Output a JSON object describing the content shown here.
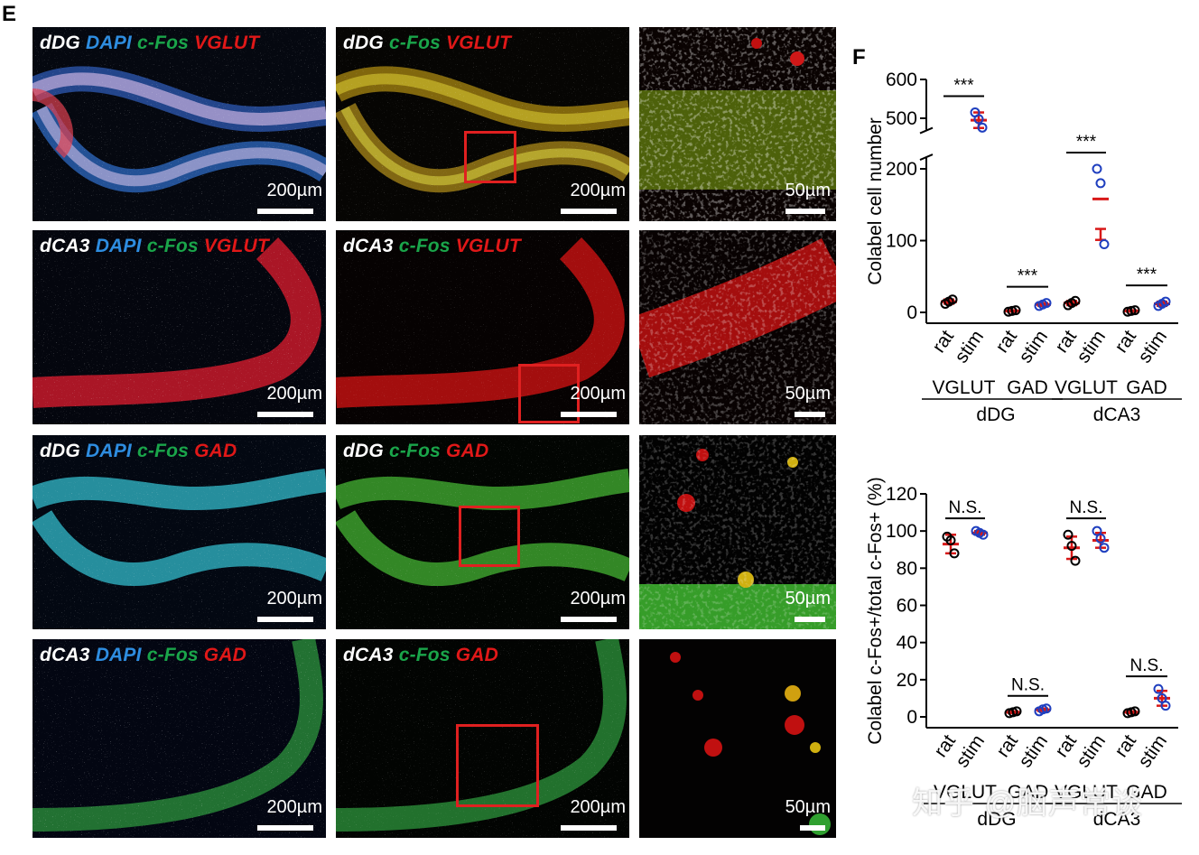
{
  "panel_e_label": "E",
  "panel_f_label": "F",
  "rows": [
    {
      "region": "dDG",
      "marker": "VGLUT",
      "scale_main": "200µm",
      "scale_zoom": "50µm"
    },
    {
      "region": "dCA3",
      "marker": "VGLUT",
      "scale_main": "200µm",
      "scale_zoom": "50µm"
    },
    {
      "region": "dDG",
      "marker": "GAD",
      "scale_main": "200µm",
      "scale_zoom": "50µm"
    },
    {
      "region": "dCA3",
      "marker": "GAD",
      "scale_main": "200µm",
      "scale_zoom": "50µm"
    }
  ],
  "channels": {
    "dapi": "DAPI",
    "cfos": "c-Fos"
  },
  "colors": {
    "dapi": "#2e8de0",
    "cfos": "#1aa54a",
    "red": "#e01818",
    "marker_red": "#d81818",
    "marker_blue": "#1f3fbf",
    "marker_black": "#000000"
  },
  "chart_data": [
    {
      "type": "scatter",
      "ylabel": "Colabel cell number",
      "yticks": [
        0,
        100,
        200,
        500,
        600
      ],
      "axis_break": [
        210,
        480
      ],
      "x_tick_labels": [
        "rat",
        "stim",
        "rat",
        "stim",
        "rat",
        "stim",
        "rat",
        "stim"
      ],
      "group_labels": [
        "VGLUT",
        "GAD",
        "VGLUT",
        "GAD"
      ],
      "region_labels": [
        "dDG",
        "dCA3"
      ],
      "significance": [
        "***",
        "***",
        "***",
        "***"
      ],
      "series": [
        {
          "name": "rat",
          "color": "black",
          "points": [
            [
              0,
              12
            ],
            [
              0,
              15
            ],
            [
              0,
              18
            ],
            [
              2,
              1
            ],
            [
              2,
              2
            ],
            [
              2,
              3
            ],
            [
              4,
              10
            ],
            [
              4,
              13
            ],
            [
              4,
              16
            ],
            [
              6,
              1
            ],
            [
              6,
              2
            ],
            [
              6,
              3
            ]
          ]
        },
        {
          "name": "stim",
          "color": "blue",
          "points": [
            [
              1,
              515
            ],
            [
              1,
              498
            ],
            [
              1,
              476
            ],
            [
              3,
              9
            ],
            [
              3,
              11
            ],
            [
              3,
              13
            ],
            [
              5,
              200
            ],
            [
              5,
              180
            ],
            [
              5,
              95
            ],
            [
              7,
              9
            ],
            [
              7,
              12
            ],
            [
              7,
              15
            ]
          ]
        }
      ],
      "mean_sd": [
        {
          "x": 0,
          "mean": 15,
          "sd": 3
        },
        {
          "x": 1,
          "mean": 495,
          "sd": 20
        },
        {
          "x": 2,
          "mean": 2,
          "sd": 1
        },
        {
          "x": 3,
          "mean": 11,
          "sd": 2
        },
        {
          "x": 4,
          "mean": 13,
          "sd": 3
        },
        {
          "x": 5,
          "mean": 158,
          "sd": 57
        },
        {
          "x": 6,
          "mean": 2,
          "sd": 1
        },
        {
          "x": 7,
          "mean": 12,
          "sd": 3
        }
      ]
    },
    {
      "type": "scatter",
      "ylabel": "Colabel c-Fos+/total c-Fos+ (%)",
      "yticks": [
        0,
        20,
        40,
        60,
        80,
        100,
        120
      ],
      "ylim": [
        0,
        120
      ],
      "x_tick_labels": [
        "rat",
        "stim",
        "rat",
        "stim",
        "rat",
        "stim",
        "rat",
        "stim"
      ],
      "group_labels": [
        "VGLUT",
        "GAD",
        "VGLUT",
        "GAD"
      ],
      "region_labels": [
        "dDG",
        "dCA3"
      ],
      "significance": [
        "N.S.",
        "N.S.",
        "N.S.",
        "N.S."
      ],
      "series": [
        {
          "name": "rat",
          "color": "black",
          "points": [
            [
              0,
              97
            ],
            [
              0,
              95
            ],
            [
              0,
              88
            ],
            [
              2,
              2
            ],
            [
              2,
              2.5
            ],
            [
              2,
              3
            ],
            [
              4,
              98
            ],
            [
              4,
              92
            ],
            [
              4,
              84
            ],
            [
              6,
              2
            ],
            [
              6,
              2.5
            ],
            [
              6,
              3
            ]
          ]
        },
        {
          "name": "stim",
          "color": "blue",
          "points": [
            [
              1,
              100
            ],
            [
              1,
              99
            ],
            [
              1,
              98
            ],
            [
              3,
              3
            ],
            [
              3,
              4
            ],
            [
              3,
              4.5
            ],
            [
              5,
              100
            ],
            [
              5,
              96
            ],
            [
              5,
              91
            ],
            [
              7,
              15
            ],
            [
              7,
              10
            ],
            [
              7,
              6
            ]
          ]
        }
      ],
      "mean_sd": [
        {
          "x": 0,
          "mean": 93,
          "sd": 5
        },
        {
          "x": 1,
          "mean": 99,
          "sd": 1
        },
        {
          "x": 2,
          "mean": 2.5,
          "sd": 0.5
        },
        {
          "x": 3,
          "mean": 3.8,
          "sd": 0.7
        },
        {
          "x": 4,
          "mean": 91,
          "sd": 6
        },
        {
          "x": 5,
          "mean": 95,
          "sd": 4
        },
        {
          "x": 6,
          "mean": 2.5,
          "sd": 0.5
        },
        {
          "x": 7,
          "mean": 10,
          "sd": 4
        }
      ]
    }
  ],
  "watermark": "知乎 @脑声常谈"
}
